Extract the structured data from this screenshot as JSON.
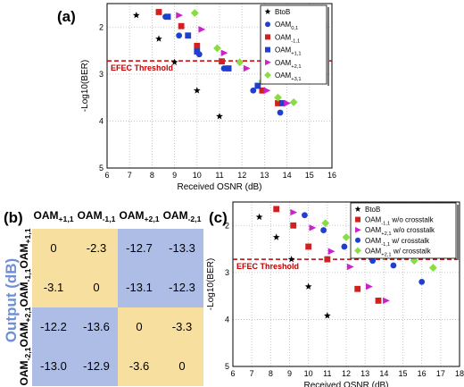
{
  "panels": {
    "a": "(a)",
    "b": "(b)",
    "c": "(c)"
  },
  "colors": {
    "btob": "#000000",
    "oam01": "#1f3fd0",
    "oam_m11": "#d02020",
    "oam_p11": "#1f3fd0",
    "oam_p21": "#cc22cc",
    "oam_p31": "#88dd44",
    "threshold": "#c00000",
    "matrix_yellow": "#f7dfa0",
    "matrix_blue": "#aebde6",
    "output_label": "#6f8fd6"
  },
  "matrix": {
    "col_headers": [
      {
        "base": "OAM",
        "sub": "+1,1"
      },
      {
        "base": "OAM",
        "sub": "-1,1"
      },
      {
        "base": "OAM",
        "sub": "+2,1"
      },
      {
        "base": "OAM",
        "sub": "-2,1"
      }
    ],
    "row_headers": [
      {
        "base": "OAM",
        "sub": "+1,1"
      },
      {
        "base": "OAM",
        "sub": "-1,1"
      },
      {
        "base": "OAM",
        "sub": "+2,1"
      },
      {
        "base": "OAM",
        "sub": "-2,1"
      }
    ],
    "side_label": "Output (dB)",
    "values": [
      [
        "0",
        "-2.3",
        "-12.7",
        "-13.3"
      ],
      [
        "-3.1",
        "0",
        "-13.1",
        "-12.3"
      ],
      [
        "-12.2",
        "-13.6",
        "0",
        "-3.3"
      ],
      [
        "-13.0",
        "-12.9",
        "-3.6",
        "0"
      ]
    ],
    "shade": [
      [
        "y",
        "y",
        "b",
        "b"
      ],
      [
        "y",
        "y",
        "b",
        "b"
      ],
      [
        "b",
        "b",
        "y",
        "y"
      ],
      [
        "b",
        "b",
        "y",
        "y"
      ]
    ]
  },
  "chart_data": [
    {
      "type": "scatter",
      "panel": "(a)",
      "xlabel": "Received OSNR (dB)",
      "ylabel": "-Log10(BER)",
      "xlim": [
        6,
        16
      ],
      "ylim": [
        5,
        1.5
      ],
      "x_ticks": [
        6,
        7,
        8,
        9,
        10,
        11,
        12,
        13,
        14,
        15,
        16
      ],
      "y_ticks": [
        2,
        3,
        4,
        5
      ],
      "grid": true,
      "legend_position": "top-right",
      "threshold": {
        "y": 2.72,
        "label": "EFEC Threshold"
      },
      "series": [
        {
          "name": "BtoB",
          "sub": "",
          "marker": "star",
          "color": "#000000",
          "points": [
            [
              7.3,
              1.75
            ],
            [
              8.3,
              2.25
            ],
            [
              9.0,
              2.75
            ],
            [
              10.0,
              3.35
            ],
            [
              11.0,
              3.9
            ]
          ]
        },
        {
          "name": "OAM",
          "sub": "0,1",
          "marker": "circle",
          "color": "#1f3fd0",
          "points": [
            [
              8.6,
              1.78
            ],
            [
              9.2,
              2.18
            ],
            [
              10.1,
              2.58
            ],
            [
              11.2,
              2.88
            ],
            [
              12.5,
              3.35
            ],
            [
              13.7,
              3.82
            ]
          ]
        },
        {
          "name": "OAM",
          "sub": "-1,1",
          "marker": "square",
          "color": "#d02020",
          "points": [
            [
              8.3,
              1.68
            ],
            [
              9.3,
              1.98
            ],
            [
              10.0,
              2.4
            ],
            [
              11.1,
              2.73
            ],
            [
              12.9,
              3.35
            ],
            [
              13.6,
              3.62
            ]
          ]
        },
        {
          "name": "OAM",
          "sub": "+1,1",
          "marker": "square",
          "color": "#1f3fd0",
          "points": [
            [
              8.7,
              1.78
            ],
            [
              9.6,
              2.18
            ],
            [
              10.0,
              2.52
            ],
            [
              11.4,
              2.88
            ],
            [
              12.7,
              3.25
            ],
            [
              13.8,
              3.62
            ]
          ]
        },
        {
          "name": "OAM",
          "sub": "+2,1",
          "marker": "triangle",
          "color": "#cc22cc",
          "points": [
            [
              9.2,
              1.75
            ],
            [
              10.2,
              2.05
            ],
            [
              11.2,
              2.55
            ],
            [
              12.2,
              2.88
            ],
            [
              13.1,
              3.35
            ],
            [
              14.0,
              3.62
            ]
          ]
        },
        {
          "name": "OAM",
          "sub": "+3,1",
          "marker": "diamond",
          "color": "#88dd44",
          "points": [
            [
              9.9,
              1.7
            ],
            [
              10.9,
              2.45
            ],
            [
              11.9,
              2.75
            ],
            [
              12.9,
              3.15
            ],
            [
              13.6,
              3.5
            ],
            [
              14.3,
              3.6
            ]
          ]
        }
      ]
    },
    {
      "type": "scatter",
      "panel": "(c)",
      "xlabel": "Received OSNR (dB)",
      "ylabel": "-Log10(BER)",
      "xlim": [
        6,
        18
      ],
      "ylim": [
        5,
        1.5
      ],
      "x_ticks": [
        6,
        7,
        8,
        9,
        10,
        11,
        12,
        13,
        14,
        15,
        16,
        17,
        18
      ],
      "y_ticks": [
        2,
        3,
        4,
        5
      ],
      "grid": true,
      "legend_position": "top-right",
      "threshold": {
        "y": 2.72,
        "label": "EFEC Threshold"
      },
      "series": [
        {
          "name": "BtoB",
          "sub": "",
          "suffix": "",
          "marker": "star",
          "color": "#000000",
          "points": [
            [
              7.4,
              1.82
            ],
            [
              8.3,
              2.25
            ],
            [
              9.1,
              2.72
            ],
            [
              10.0,
              3.3
            ],
            [
              11.0,
              3.92
            ]
          ]
        },
        {
          "name": "OAM",
          "sub": "-1,1",
          "suffix": " w/o crosstalk",
          "marker": "square",
          "color": "#d02020",
          "points": [
            [
              8.3,
              1.65
            ],
            [
              9.2,
              2.0
            ],
            [
              10.0,
              2.45
            ],
            [
              11.0,
              2.72
            ],
            [
              12.6,
              3.35
            ],
            [
              13.7,
              3.6
            ]
          ]
        },
        {
          "name": "OAM",
          "sub": "+2,1",
          "suffix": " w/o crosstalk",
          "marker": "triangle",
          "color": "#cc22cc",
          "points": [
            [
              9.2,
              1.72
            ],
            [
              10.2,
              2.05
            ],
            [
              11.2,
              2.55
            ],
            [
              12.2,
              2.88
            ],
            [
              13.2,
              3.3
            ],
            [
              14.1,
              3.6
            ]
          ]
        },
        {
          "name": "OAM",
          "sub": "-1,1",
          "suffix": " w/ crosstalk",
          "marker": "circle",
          "color": "#1f3fd0",
          "points": [
            [
              9.8,
              1.78
            ],
            [
              10.8,
              2.1
            ],
            [
              11.9,
              2.45
            ],
            [
              13.4,
              2.75
            ],
            [
              14.5,
              2.85
            ],
            [
              16.0,
              3.2
            ]
          ]
        },
        {
          "name": "OAM",
          "sub": "+2,1",
          "suffix": " w/ crosstalk",
          "marker": "diamond",
          "color": "#88dd44",
          "points": [
            [
              10.9,
              1.95
            ],
            [
              12.0,
              2.25
            ],
            [
              13.0,
              2.45
            ],
            [
              14.0,
              2.65
            ],
            [
              15.6,
              2.75
            ],
            [
              16.6,
              2.9
            ]
          ]
        }
      ]
    }
  ]
}
